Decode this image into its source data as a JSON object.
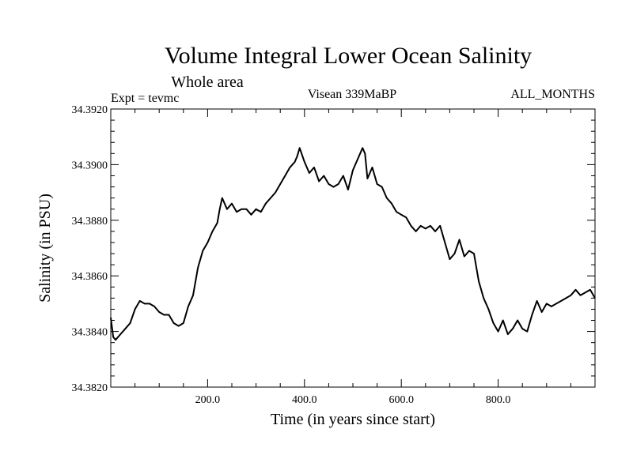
{
  "chart_data": {
    "type": "line",
    "title": "Volume Integral Lower Ocean Salinity",
    "subtitle": "Whole area",
    "header_left": "Expt = tevmc",
    "header_center": "Visean 339MaBP",
    "header_right": "ALL_MONTHS",
    "xlabel": "Time (in years since start)",
    "ylabel": "Salinity (in PSU)",
    "xlim": [
      0,
      1000
    ],
    "ylim": [
      34.382,
      34.392
    ],
    "x_ticks": [
      200,
      400,
      600,
      800
    ],
    "x_tick_labels": [
      "200.0",
      "400.0",
      "600.0",
      "800.0"
    ],
    "y_ticks": [
      34.382,
      34.384,
      34.386,
      34.388,
      34.39,
      34.392
    ],
    "y_tick_labels": [
      "34.3820",
      "34.3840",
      "34.3860",
      "34.3880",
      "34.3900",
      "34.3920"
    ],
    "grid": false,
    "series": [
      {
        "name": "salinity",
        "x": [
          0,
          5,
          10,
          20,
          30,
          40,
          50,
          60,
          70,
          80,
          90,
          100,
          110,
          120,
          130,
          140,
          150,
          160,
          170,
          180,
          190,
          200,
          210,
          220,
          225,
          230,
          240,
          250,
          260,
          270,
          280,
          290,
          300,
          310,
          320,
          330,
          340,
          350,
          360,
          370,
          380,
          385,
          390,
          400,
          410,
          420,
          430,
          440,
          450,
          460,
          470,
          480,
          490,
          500,
          510,
          520,
          525,
          530,
          540,
          550,
          560,
          570,
          580,
          590,
          600,
          610,
          620,
          630,
          640,
          650,
          660,
          670,
          680,
          690,
          700,
          710,
          720,
          730,
          740,
          750,
          760,
          770,
          780,
          790,
          800,
          810,
          820,
          830,
          840,
          850,
          860,
          870,
          880,
          890,
          900,
          910,
          920,
          930,
          940,
          950,
          960,
          970,
          980,
          990,
          1000
        ],
        "values": [
          34.3845,
          34.3838,
          34.3837,
          34.3839,
          34.3841,
          34.3843,
          34.3848,
          34.3851,
          34.385,
          34.385,
          34.3849,
          34.3847,
          34.3846,
          34.3846,
          34.3843,
          34.3842,
          34.3843,
          34.3849,
          34.3853,
          34.3863,
          34.3869,
          34.3872,
          34.3876,
          34.3879,
          34.3884,
          34.3888,
          34.3884,
          34.3886,
          34.3883,
          34.3884,
          34.3884,
          34.3882,
          34.3884,
          34.3883,
          34.3886,
          34.3888,
          34.389,
          34.3893,
          34.3896,
          34.3899,
          34.3901,
          34.3903,
          34.3906,
          34.3901,
          34.3897,
          34.3899,
          34.3894,
          34.3896,
          34.3893,
          34.3892,
          34.3893,
          34.3896,
          34.3891,
          34.3898,
          34.3902,
          34.3906,
          34.3904,
          34.3895,
          34.3899,
          34.3893,
          34.3892,
          34.3888,
          34.3886,
          34.3883,
          34.3882,
          34.3881,
          34.3878,
          34.3876,
          34.3878,
          34.3877,
          34.3878,
          34.3876,
          34.3878,
          34.3872,
          34.3866,
          34.3868,
          34.3873,
          34.3867,
          34.3869,
          34.3868,
          34.3858,
          34.3852,
          34.3848,
          34.3843,
          34.384,
          34.3844,
          34.3839,
          34.3841,
          34.3844,
          34.3841,
          34.384,
          34.3846,
          34.3851,
          34.3847,
          34.385,
          34.3849,
          34.385,
          34.3851,
          34.3852,
          34.3853,
          34.3855,
          34.3853,
          34.3854,
          34.3855,
          34.3852
        ]
      }
    ]
  }
}
